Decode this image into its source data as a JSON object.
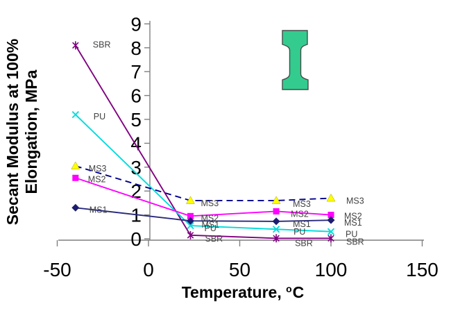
{
  "figure": {
    "y_axis_title_line1": "Secant Modulus at 100%",
    "y_axis_title_line2": "Elongation, MPa",
    "x_axis_title_prefix": "Temperature,",
    "x_axis_title_degree": "o",
    "x_axis_title_unit": "C",
    "specimen_icon": {
      "meaning": "tensile-test-dogbone-specimen",
      "fill": "#33cc8e",
      "outline": "#4a4a4a"
    }
  },
  "chart_data": {
    "type": "line",
    "title": "",
    "xlabel": "Temperature, °C",
    "ylabel": "Secant Modulus at 100% Elongation, MPa",
    "x": [
      -40,
      23,
      70,
      100
    ],
    "x_ticks": [
      -50,
      0,
      50,
      100,
      150
    ],
    "y_ticks": [
      0,
      1,
      2,
      3,
      4,
      5,
      6,
      7,
      8,
      9
    ],
    "xlim": [
      -50,
      150
    ],
    "ylim": [
      0,
      9
    ],
    "grid": false,
    "legend_position": "labels-next-to-points",
    "axis_color": "#7f7f7f",
    "tick_label_color": "#000000",
    "point_label_color": "#424242",
    "series": [
      {
        "name": "SBR",
        "color": "#800080",
        "marker": "asterisk",
        "marker_color": "#800080",
        "line_style": "solid",
        "values": [
          8.1,
          0.15,
          0.02,
          0.02
        ]
      },
      {
        "name": "PU",
        "color": "#00dcdc",
        "marker": "x",
        "marker_color": "#00dcdc",
        "line_style": "solid",
        "values": [
          5.2,
          0.55,
          0.4,
          0.3
        ]
      },
      {
        "name": "MS2",
        "color": "#ff00ff",
        "marker": "square",
        "marker_color": "#ff00ff",
        "line_style": "solid",
        "values": [
          2.55,
          0.95,
          1.15,
          1.0
        ]
      },
      {
        "name": "MS1",
        "color": "#29297d",
        "marker": "diamond",
        "marker_color": "#1c1c70",
        "line_style": "solid",
        "values": [
          1.3,
          0.75,
          0.73,
          0.78
        ]
      },
      {
        "name": "MS3",
        "color": "#00008b",
        "marker": "triangle",
        "marker_color": "#ffff00",
        "line_style": "dashed",
        "values": [
          3.05,
          1.6,
          1.6,
          1.7
        ]
      }
    ]
  }
}
